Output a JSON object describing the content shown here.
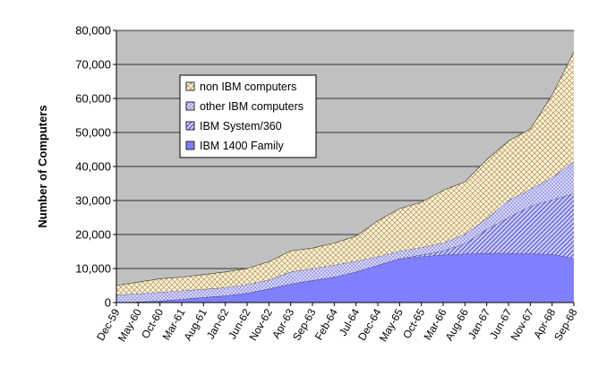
{
  "chart_data": {
    "type": "area",
    "stacked": true,
    "ylabel": "Number of Computers",
    "xlabel": "",
    "ylim": [
      0,
      80000
    ],
    "yticks": [
      "0",
      "10,000",
      "20,000",
      "30,000",
      "40,000",
      "50,000",
      "60,000",
      "70,000",
      "80,000"
    ],
    "grid": true,
    "legend_position": "upper-left inside plot",
    "categories": [
      "Dec-59",
      "May-60",
      "Oct-60",
      "Mar-61",
      "Aug-61",
      "Jan-62",
      "Jun-62",
      "Nov-62",
      "Apr-63",
      "Sep-63",
      "Feb-64",
      "Jul-64",
      "Dec-64",
      "May-65",
      "Oct-65",
      "Mar-66",
      "Aug-66",
      "Jan-67",
      "Jun-67",
      "Nov-67",
      "Apr-68",
      "Sep-68"
    ],
    "series": [
      {
        "name": "IBM 1400 Family",
        "color": "#8080ff",
        "pattern": "solid",
        "values": [
          0,
          200,
          500,
          1000,
          1500,
          2000,
          2800,
          4000,
          5500,
          6500,
          7500,
          9000,
          11000,
          12800,
          13500,
          14000,
          14300,
          14500,
          14500,
          14300,
          14200,
          13000
        ]
      },
      {
        "name": "IBM System/360",
        "color": "#8080ff",
        "pattern": "diagonal",
        "values": [
          0,
          0,
          0,
          0,
          0,
          0,
          0,
          0,
          0,
          0,
          0,
          0,
          0,
          100,
          500,
          1200,
          3000,
          7000,
          10500,
          14000,
          16000,
          19000
        ]
      },
      {
        "name": "other IBM computers",
        "color": "#ccccff",
        "pattern": "dots",
        "values": [
          2200,
          2400,
          2500,
          2500,
          2400,
          2400,
          2500,
          2600,
          3500,
          3500,
          3500,
          3200,
          2500,
          2200,
          2200,
          2300,
          2800,
          3200,
          5000,
          5000,
          6500,
          9500
        ]
      },
      {
        "name": "non IBM computers",
        "color": "#ffe7b0",
        "pattern": "crosshatch",
        "values": [
          2800,
          3400,
          4000,
          4000,
          4300,
          4600,
          4700,
          5400,
          6200,
          6000,
          6500,
          7300,
          10500,
          12500,
          13300,
          15500,
          15400,
          17300,
          17500,
          17700,
          24300,
          32200
        ]
      }
    ]
  }
}
